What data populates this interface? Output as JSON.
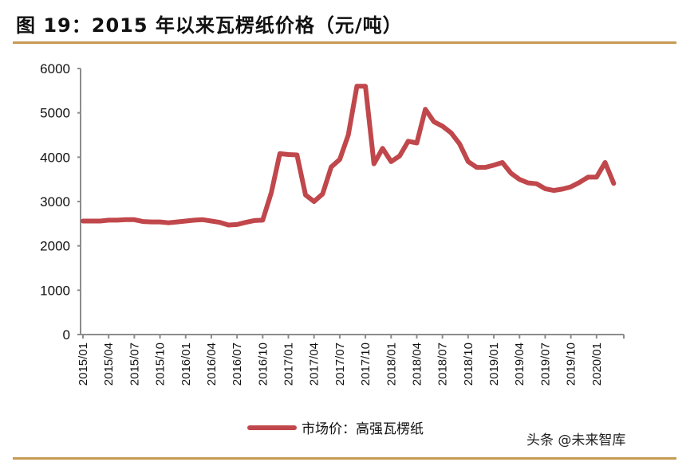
{
  "header": {
    "title": "图 19：2015 年以来瓦楞纸价格（元/吨）"
  },
  "legend": {
    "label": "市场价：高强瓦楞纸",
    "color": "#c0474b"
  },
  "watermark": "头条 @未来智库",
  "colors": {
    "rule": "#c79a55",
    "line": "#c0474b",
    "axis": "#8c8c8c"
  },
  "chart_data": {
    "type": "line",
    "title": "图 19：2015 年以来瓦楞纸价格（元/吨）",
    "xlabel": "",
    "ylabel": "",
    "ylim": [
      0,
      6000
    ],
    "yticks": [
      0,
      1000,
      2000,
      3000,
      4000,
      5000,
      6000
    ],
    "xtick_labels": [
      "2015/01",
      "2015/04",
      "2015/07",
      "2015/10",
      "2016/01",
      "2016/04",
      "2016/07",
      "2016/10",
      "2017/01",
      "2017/04",
      "2017/07",
      "2017/10",
      "2018/01",
      "2018/04",
      "2018/07",
      "2018/10",
      "2019/01",
      "2019/04",
      "2019/07",
      "2019/10",
      "2020/01"
    ],
    "grid": false,
    "legend_position": "bottom",
    "series": [
      {
        "name": "市场价：高强瓦楞纸",
        "x": [
          "2015/01",
          "2015/02",
          "2015/03",
          "2015/04",
          "2015/05",
          "2015/06",
          "2015/07",
          "2015/08",
          "2015/09",
          "2015/10",
          "2015/11",
          "2015/12",
          "2016/01",
          "2016/02",
          "2016/03",
          "2016/04",
          "2016/05",
          "2016/06",
          "2016/07",
          "2016/08",
          "2016/09",
          "2016/10",
          "2016/11",
          "2016/12",
          "2017/01",
          "2017/02",
          "2017/03",
          "2017/04",
          "2017/05",
          "2017/06",
          "2017/07",
          "2017/08",
          "2017/09",
          "2017/10",
          "2017/11",
          "2017/12",
          "2018/01",
          "2018/02",
          "2018/03",
          "2018/04",
          "2018/05",
          "2018/06",
          "2018/07",
          "2018/08",
          "2018/09",
          "2018/10",
          "2018/11",
          "2018/12",
          "2019/01",
          "2019/02",
          "2019/03",
          "2019/04",
          "2019/05",
          "2019/06",
          "2019/07",
          "2019/08",
          "2019/09",
          "2019/10",
          "2019/11",
          "2019/12",
          "2020/01",
          "2020/02",
          "2020/03"
        ],
        "values": [
          2560,
          2560,
          2560,
          2580,
          2580,
          2590,
          2590,
          2550,
          2540,
          2540,
          2520,
          2540,
          2560,
          2580,
          2590,
          2560,
          2530,
          2470,
          2480,
          2530,
          2570,
          2580,
          3200,
          4080,
          4060,
          4050,
          3150,
          3000,
          3170,
          3780,
          3950,
          4500,
          5600,
          5600,
          3850,
          4200,
          3900,
          4030,
          4360,
          4320,
          5080,
          4800,
          4700,
          4550,
          4300,
          3900,
          3770,
          3770,
          3820,
          3880,
          3640,
          3500,
          3420,
          3400,
          3290,
          3250,
          3280,
          3330,
          3430,
          3550,
          3550,
          3880,
          3410
        ]
      }
    ]
  }
}
